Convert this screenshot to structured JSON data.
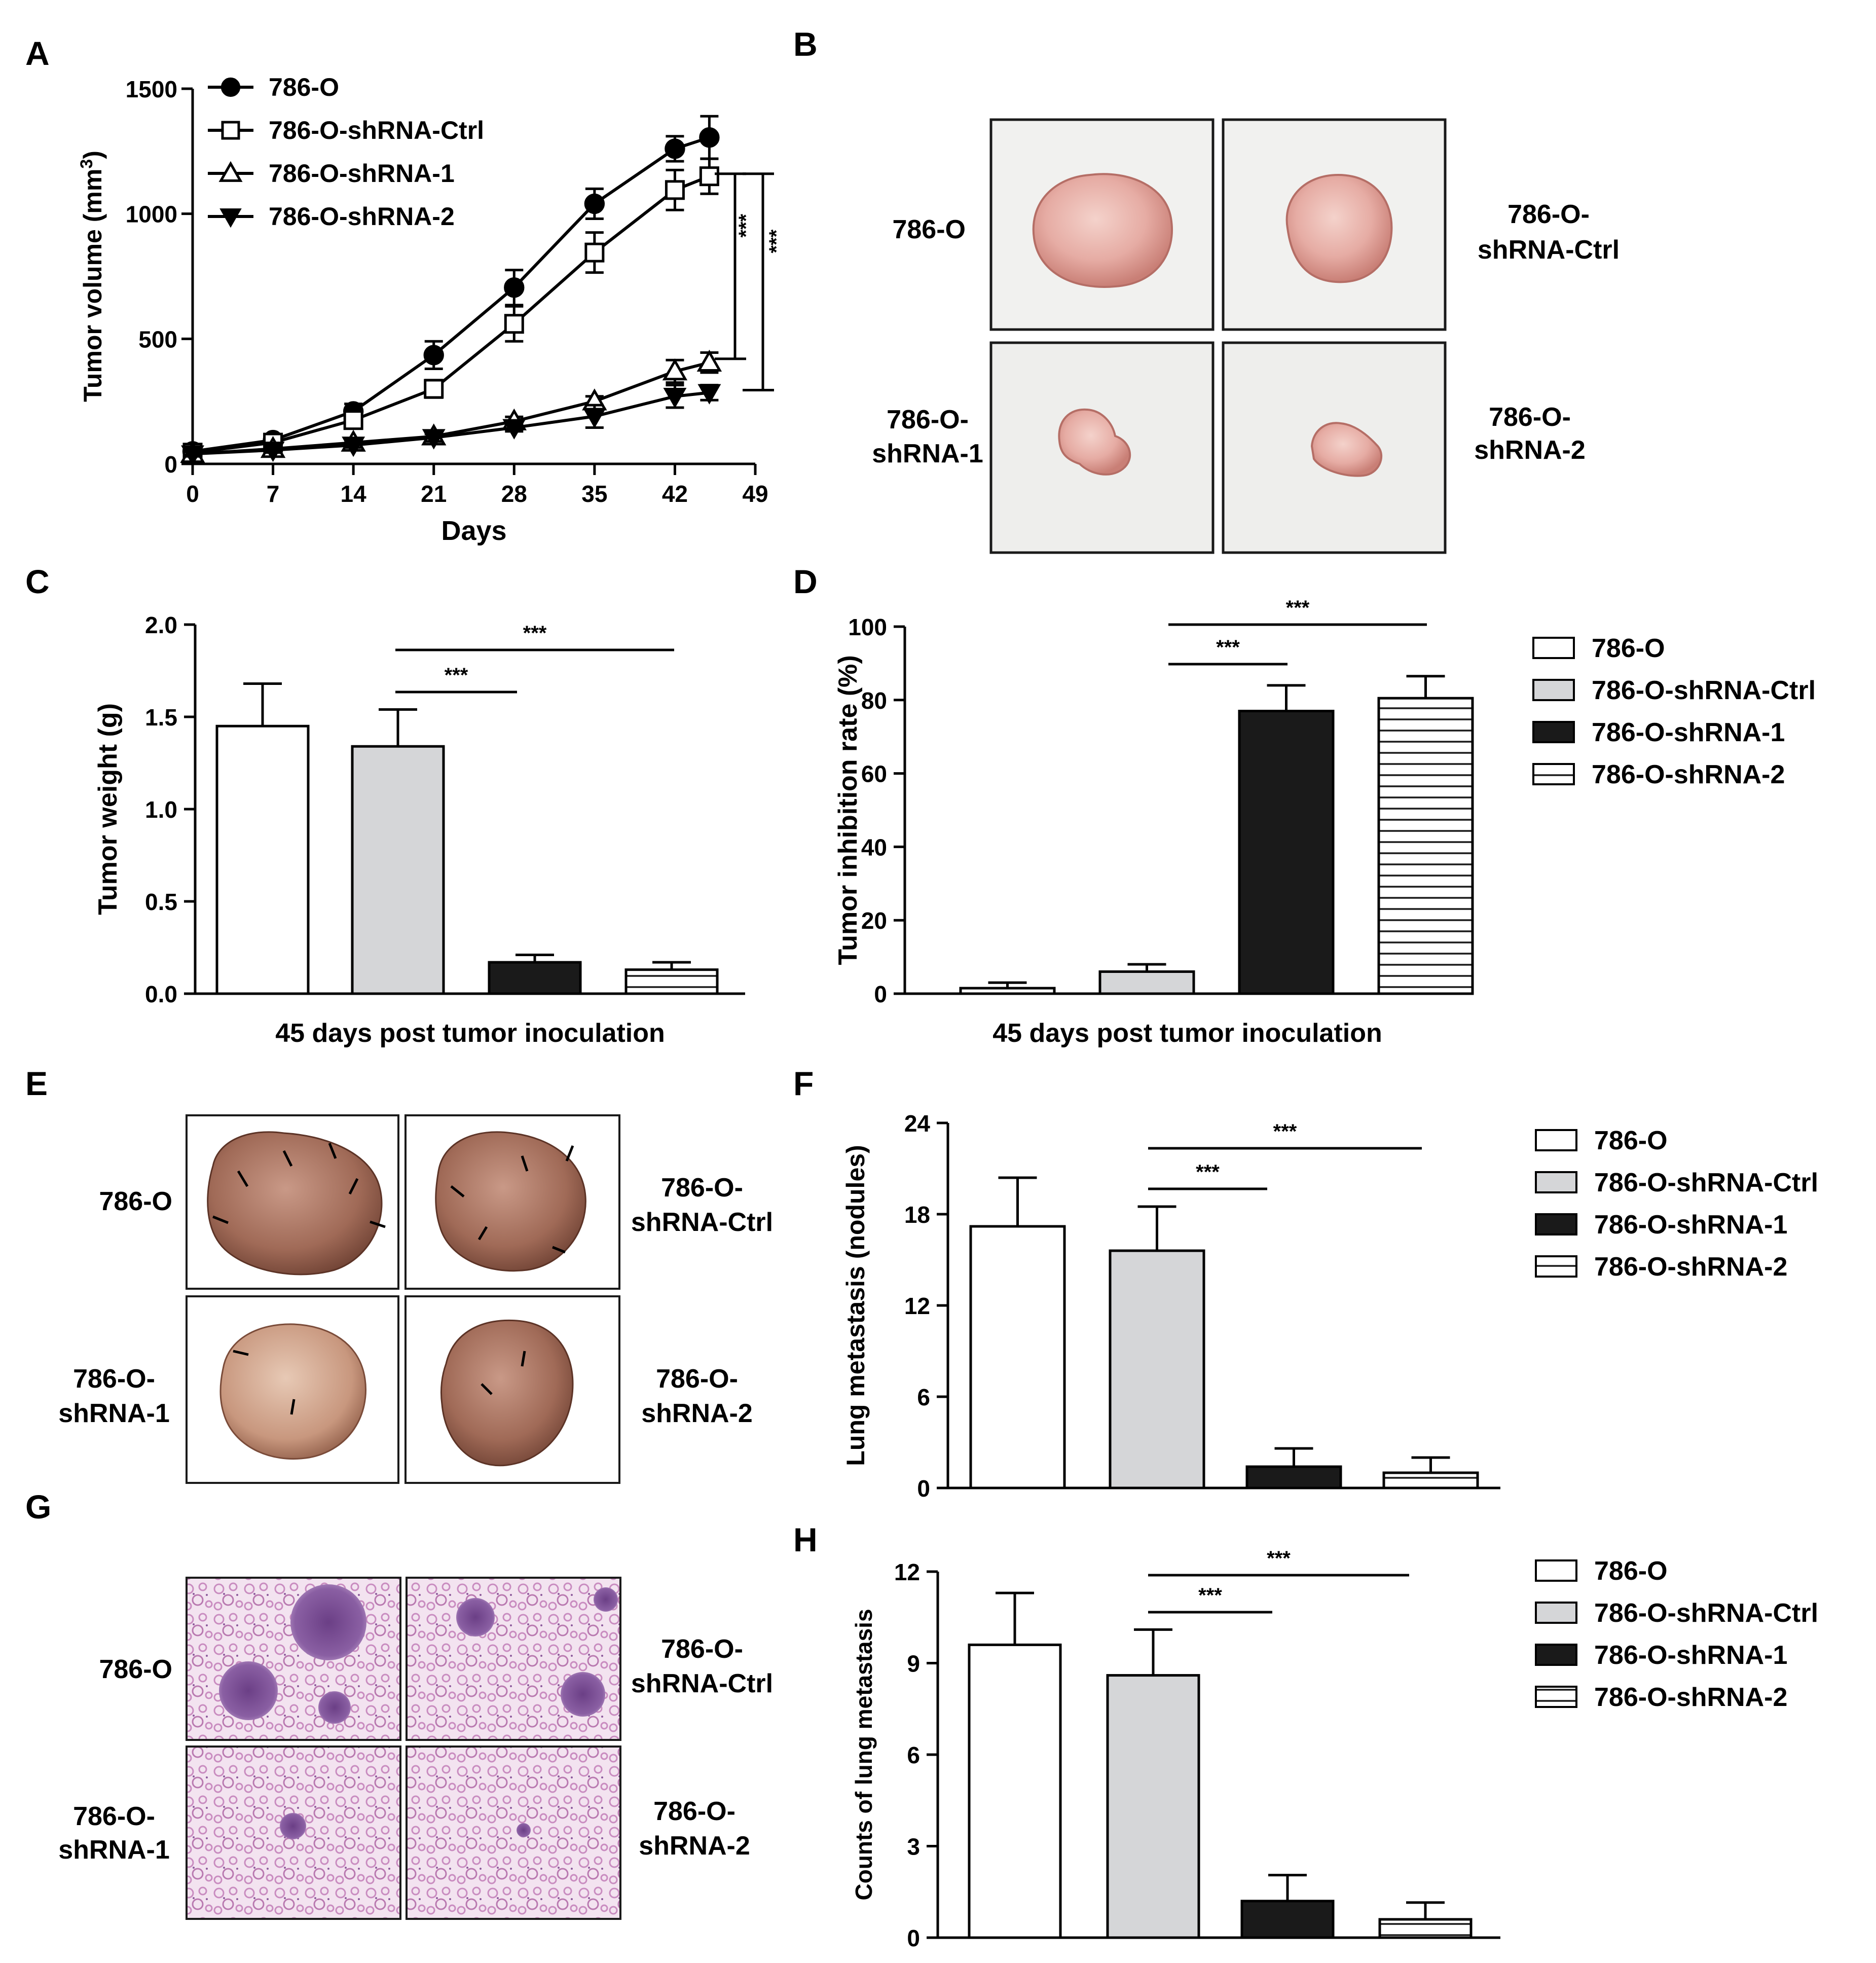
{
  "panel_labels": {
    "A": "A",
    "B": "B",
    "C": "C",
    "D": "D",
    "E": "E",
    "F": "F",
    "G": "G",
    "H": "H"
  },
  "colors": {
    "white": "#ffffff",
    "light_gray": "#d5d6d8",
    "black": "#1a1a1a",
    "tissue": "#e9b8b2",
    "lung": "#a8705d",
    "histology": "#d7a6cf"
  },
  "photo_panels": {
    "B": {
      "captions": {
        "top_left": "786-O",
        "top_right": [
          "786-O-",
          "shRNA-Ctrl"
        ],
        "bottom_left": [
          "786-O-",
          "shRNA-1"
        ],
        "bottom_right": [
          "786-O-",
          "shRNA-2"
        ]
      }
    },
    "E": {
      "captions": {
        "top_left": "786-O",
        "top_right": [
          "786-O-",
          "shRNA-Ctrl"
        ],
        "bottom_left": [
          "786-O-",
          "shRNA-1"
        ],
        "bottom_right": [
          "786-O-",
          "shRNA-2"
        ]
      }
    },
    "G": {
      "captions": {
        "top_left": "786-O",
        "top_right": [
          "786-O-",
          "shRNA-Ctrl"
        ],
        "bottom_left": [
          "786-O-",
          "shRNA-1"
        ],
        "bottom_right": [
          "786-O-",
          "shRNA-2"
        ]
      }
    }
  },
  "chart_data": [
    {
      "panel": "A",
      "type": "line",
      "xlabel": "Days",
      "ylabel": "Tumor volume (mm",
      "ylabel_sup": "3",
      "ylabel_end": ")",
      "xlim": [
        0,
        49
      ],
      "ylim": [
        0,
        1500
      ],
      "xticks": [
        0,
        7,
        14,
        21,
        28,
        35,
        42,
        49
      ],
      "yticks": [
        0,
        500,
        1000,
        1500
      ],
      "x": [
        0,
        7,
        14,
        21,
        28,
        35,
        42,
        45
      ],
      "series": [
        {
          "name": "786-O",
          "marker": "circle",
          "values": [
            50,
            95,
            210,
            435,
            705,
            1040,
            1260,
            1305
          ],
          "err": [
            15,
            15,
            30,
            55,
            70,
            60,
            50,
            85
          ]
        },
        {
          "name": "786-O-shRNA-Ctrl",
          "marker": "square",
          "values": [
            45,
            85,
            175,
            300,
            560,
            845,
            1095,
            1150
          ],
          "err": [
            12,
            15,
            25,
            35,
            70,
            80,
            80,
            70
          ]
        },
        {
          "name": "786-O-shRNA-1",
          "marker": "triangle-up",
          "values": [
            40,
            60,
            85,
            110,
            170,
            250,
            370,
            405
          ],
          "err": [
            10,
            10,
            12,
            15,
            18,
            20,
            45,
            40
          ]
        },
        {
          "name": "786-O-shRNA-2",
          "marker": "triangle-down",
          "values": [
            40,
            55,
            75,
            105,
            145,
            190,
            270,
            285
          ],
          "err": [
            10,
            10,
            10,
            15,
            15,
            45,
            45,
            30
          ]
        }
      ],
      "annotations": [
        "***",
        "***"
      ]
    },
    {
      "panel": "C",
      "type": "bar",
      "xlabel": "45 days post tumor inoculation",
      "ylabel": "Tumor weight (g)",
      "ylim": [
        0,
        2.0
      ],
      "yticks": [
        "0.0",
        "0.5",
        "1.0",
        "1.5",
        "2.0"
      ],
      "categories": [
        "786-O",
        "786-O-shRNA-Ctrl",
        "786-O-shRNA-1",
        "786-O-shRNA-2"
      ],
      "values": [
        1.45,
        1.34,
        0.17,
        0.13
      ],
      "err": [
        0.23,
        0.2,
        0.04,
        0.04
      ],
      "annotations": [
        "***",
        "***"
      ]
    },
    {
      "panel": "D",
      "type": "bar",
      "xlabel": "45 days post tumor inoculation",
      "ylabel": "Tumor inhibition rate (%)",
      "ylim": [
        0,
        100
      ],
      "yticks": [
        "0",
        "20",
        "40",
        "60",
        "80",
        "100"
      ],
      "categories": [
        "786-O",
        "786-O-shRNA-Ctrl",
        "786-O-shRNA-1",
        "786-O-shRNA-2"
      ],
      "values": [
        1.5,
        6,
        77,
        80.5
      ],
      "err": [
        1.5,
        2,
        7,
        6
      ],
      "annotations": [
        "***",
        "***"
      ],
      "legend": [
        "786-O",
        "786-O-shRNA-Ctrl",
        "786-O-shRNA-1",
        "786-O-shRNA-2"
      ]
    },
    {
      "panel": "F",
      "type": "bar",
      "xlabel": "",
      "ylabel": "Lung metastasis (nodules)",
      "ylim": [
        0,
        24
      ],
      "yticks": [
        "0",
        "6",
        "12",
        "18",
        "24"
      ],
      "categories": [
        "786-O",
        "786-O-shRNA-Ctrl",
        "786-O-shRNA-1",
        "786-O-shRNA-2"
      ],
      "values": [
        17.2,
        15.6,
        1.4,
        1.0
      ],
      "err": [
        3.2,
        2.9,
        1.2,
        1.0
      ],
      "annotations": [
        "***",
        "***"
      ],
      "legend": [
        "786-O",
        "786-O-shRNA-Ctrl",
        "786-O-shRNA-1",
        "786-O-shRNA-2"
      ]
    },
    {
      "panel": "H",
      "type": "bar",
      "xlabel": "",
      "ylabel": "Counts of lung metastasis",
      "ylim": [
        0,
        12
      ],
      "yticks": [
        "0",
        "3",
        "6",
        "9",
        "12"
      ],
      "categories": [
        "786-O",
        "786-O-shRNA-Ctrl",
        "786-O-shRNA-1",
        "786-O-shRNA-2"
      ],
      "values": [
        9.6,
        8.6,
        1.2,
        0.6
      ],
      "err": [
        1.7,
        1.5,
        0.85,
        0.55
      ],
      "annotations": [
        "***",
        "***"
      ],
      "legend": [
        "786-O",
        "786-O-shRNA-Ctrl",
        "786-O-shRNA-1",
        "786-O-shRNA-2"
      ]
    }
  ]
}
